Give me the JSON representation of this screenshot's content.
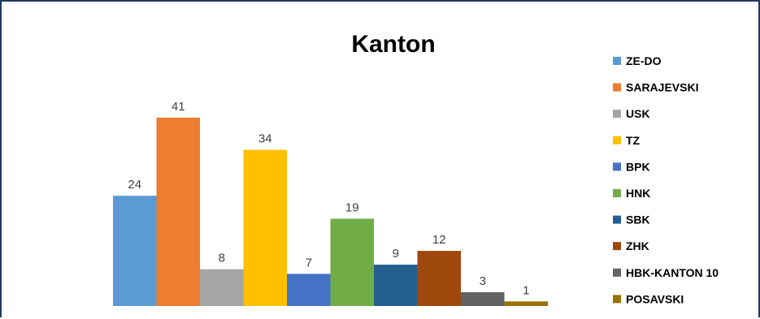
{
  "chart_data": {
    "type": "bar",
    "title": "Kanton",
    "categories": [
      "ZE-DO",
      "SARAJEVSKI",
      "USK",
      "TZ",
      "BPK",
      "HNK",
      "SBK",
      "ZHK",
      "HBK-KANTON 10",
      "POSAVSKI"
    ],
    "values": [
      24,
      41,
      8,
      34,
      7,
      19,
      9,
      12,
      3,
      1
    ],
    "colors": [
      "#5b9bd5",
      "#ed7d31",
      "#a5a5a5",
      "#ffc000",
      "#4472c4",
      "#70ad47",
      "#255e91",
      "#9e480e",
      "#636363",
      "#997300"
    ],
    "legend_position": "right",
    "grid": false,
    "data_labels": true
  }
}
